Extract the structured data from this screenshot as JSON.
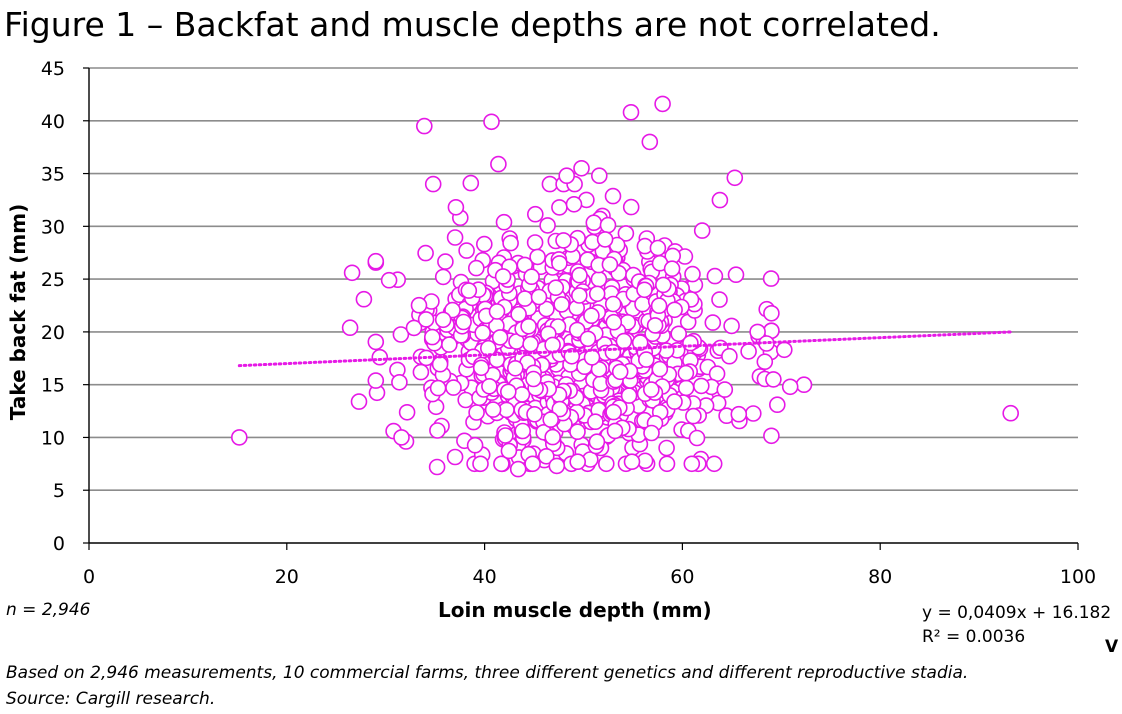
{
  "chart_data": {
    "type": "scatter",
    "title": "Figure 1 – Backfat and muscle depths are not correlated.",
    "xlabel": "Loin muscle depth (mm)",
    "ylabel": "Take back fat (mm)",
    "xlim": [
      0,
      100
    ],
    "ylim": [
      0,
      45
    ],
    "x_ticks": [
      "0",
      "20",
      "40",
      "60",
      "80",
      "100"
    ],
    "y_ticks": [
      "0",
      "5",
      "10",
      "15",
      "20",
      "25",
      "30",
      "35",
      "40",
      "45"
    ],
    "grid": "horizontal",
    "marker_color": "#e619e6",
    "marker_fill": "#ffffff",
    "trendline": {
      "type": "linear",
      "slope": 0.0409,
      "intercept": 16.182,
      "x_range": [
        15.2,
        93.2
      ],
      "style": "dotted"
    },
    "outliers": [
      [
        15.2,
        10.0
      ],
      [
        93.2,
        12.3
      ],
      [
        26.4,
        20.4
      ],
      [
        26.6,
        25.6
      ],
      [
        27.8,
        23.1
      ],
      [
        33.9,
        39.5
      ],
      [
        40.7,
        39.9
      ],
      [
        54.8,
        40.8
      ],
      [
        58.0,
        41.6
      ],
      [
        56.7,
        38.0
      ],
      [
        65.3,
        34.6
      ],
      [
        72.3,
        15.0
      ],
      [
        70.9,
        14.8
      ],
      [
        65.7,
        12.2
      ],
      [
        69.6,
        13.1
      ],
      [
        35.2,
        7.2
      ],
      [
        43.4,
        7.0
      ],
      [
        47.3,
        7.3
      ],
      [
        54.9,
        7.7
      ],
      [
        58.4,
        9.0
      ],
      [
        70.3,
        18.3
      ],
      [
        69.2,
        15.5
      ],
      [
        27.3,
        13.4
      ],
      [
        30.8,
        10.6
      ],
      [
        31.6,
        10.0
      ],
      [
        29.4,
        17.6
      ],
      [
        37.1,
        31.8
      ],
      [
        38.6,
        34.1
      ],
      [
        41.4,
        35.9
      ],
      [
        49.8,
        35.5
      ],
      [
        51.6,
        34.8
      ],
      [
        62.0,
        29.6
      ],
      [
        67.6,
        20.0
      ],
      [
        68.5,
        18.9
      ],
      [
        48.3,
        34.8
      ]
    ],
    "cloud": {
      "count": 1000,
      "x_mean": 49.0,
      "x_sd": 7.6,
      "y_mean": 18.4,
      "y_sd": 5.3,
      "seed": 2946
    }
  },
  "labels": {
    "n_label": "n = 2,946",
    "equation": "y = 0,0409x + 16.182",
    "r2": "R² = 0.0036",
    "mark": "V",
    "note_line1": "Based on 2,946 measurements, 10 commercial farms, three different genetics and different reproductive stadia.",
    "note_line2": "Source: Cargill research."
  }
}
